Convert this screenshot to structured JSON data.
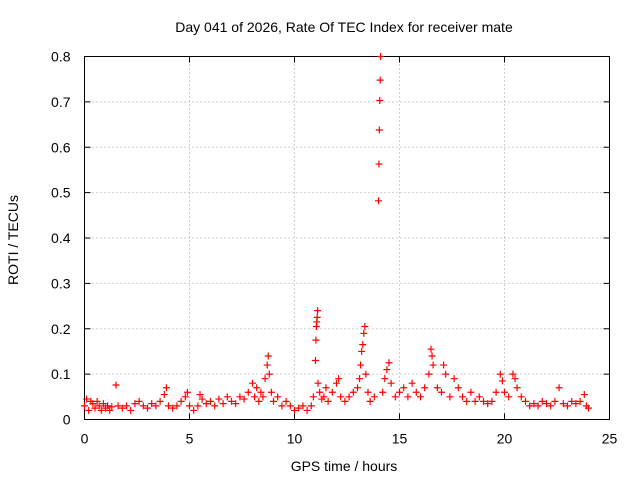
{
  "chart_data": {
    "type": "scatter",
    "title": "Day 041 of 2026, Rate Of TEC Index for receiver mate",
    "xlabel": "GPS time / hours",
    "ylabel": "ROTI / TECUs",
    "xlim": [
      0,
      25
    ],
    "ylim": [
      0,
      0.8
    ],
    "x_ticks": [
      0,
      5,
      10,
      15,
      20,
      25
    ],
    "x_tick_labels": [
      "0",
      "5",
      "10",
      "15",
      "20",
      "25"
    ],
    "y_ticks": [
      0,
      0.1,
      0.2,
      0.3,
      0.4,
      0.5,
      0.6,
      0.7,
      0.8
    ],
    "y_tick_labels": [
      "0",
      "0.1",
      "0.2",
      "0.3",
      "0.4",
      "0.5",
      "0.6",
      "0.7",
      "0.8"
    ],
    "grid": true,
    "marker": "+",
    "color": "#ff0000",
    "series": [
      {
        "name": "ROTI",
        "points": [
          [
            0.0,
            0.03
          ],
          [
            0.1,
            0.045
          ],
          [
            0.2,
            0.02
          ],
          [
            0.3,
            0.04
          ],
          [
            0.4,
            0.035
          ],
          [
            0.5,
            0.025
          ],
          [
            0.6,
            0.04
          ],
          [
            0.7,
            0.03
          ],
          [
            0.8,
            0.02
          ],
          [
            0.9,
            0.035
          ],
          [
            1.0,
            0.025
          ],
          [
            1.1,
            0.03
          ],
          [
            1.2,
            0.02
          ],
          [
            1.3,
            0.028
          ],
          [
            1.5,
            0.076
          ],
          [
            1.6,
            0.03
          ],
          [
            1.8,
            0.025
          ],
          [
            2.0,
            0.03
          ],
          [
            2.2,
            0.02
          ],
          [
            2.4,
            0.035
          ],
          [
            2.6,
            0.04
          ],
          [
            2.8,
            0.03
          ],
          [
            3.0,
            0.025
          ],
          [
            3.2,
            0.035
          ],
          [
            3.4,
            0.03
          ],
          [
            3.6,
            0.04
          ],
          [
            3.8,
            0.055
          ],
          [
            3.9,
            0.07
          ],
          [
            4.0,
            0.03
          ],
          [
            4.2,
            0.025
          ],
          [
            4.4,
            0.03
          ],
          [
            4.6,
            0.04
          ],
          [
            4.8,
            0.05
          ],
          [
            4.9,
            0.06
          ],
          [
            5.0,
            0.03
          ],
          [
            5.2,
            0.02
          ],
          [
            5.4,
            0.03
          ],
          [
            5.5,
            0.055
          ],
          [
            5.6,
            0.045
          ],
          [
            5.8,
            0.035
          ],
          [
            6.0,
            0.04
          ],
          [
            6.2,
            0.03
          ],
          [
            6.4,
            0.045
          ],
          [
            6.6,
            0.035
          ],
          [
            6.8,
            0.05
          ],
          [
            7.0,
            0.04
          ],
          [
            7.2,
            0.035
          ],
          [
            7.4,
            0.05
          ],
          [
            7.6,
            0.045
          ],
          [
            7.8,
            0.06
          ],
          [
            8.0,
            0.08
          ],
          [
            8.1,
            0.05
          ],
          [
            8.2,
            0.07
          ],
          [
            8.3,
            0.04
          ],
          [
            8.4,
            0.06
          ],
          [
            8.5,
            0.05
          ],
          [
            8.6,
            0.09
          ],
          [
            8.7,
            0.12
          ],
          [
            8.75,
            0.14
          ],
          [
            8.8,
            0.1
          ],
          [
            8.9,
            0.06
          ],
          [
            9.0,
            0.04
          ],
          [
            9.2,
            0.05
          ],
          [
            9.4,
            0.03
          ],
          [
            9.6,
            0.04
          ],
          [
            9.8,
            0.03
          ],
          [
            10.0,
            0.02
          ],
          [
            10.2,
            0.025
          ],
          [
            10.4,
            0.03
          ],
          [
            10.6,
            0.02
          ],
          [
            10.8,
            0.03
          ],
          [
            10.9,
            0.05
          ],
          [
            11.0,
            0.13
          ],
          [
            11.02,
            0.175
          ],
          [
            11.04,
            0.205
          ],
          [
            11.06,
            0.215
          ],
          [
            11.08,
            0.225
          ],
          [
            11.1,
            0.24
          ],
          [
            11.12,
            0.08
          ],
          [
            11.2,
            0.06
          ],
          [
            11.3,
            0.045
          ],
          [
            11.4,
            0.05
          ],
          [
            11.5,
            0.07
          ],
          [
            11.6,
            0.04
          ],
          [
            11.8,
            0.06
          ],
          [
            12.0,
            0.08
          ],
          [
            12.1,
            0.09
          ],
          [
            12.2,
            0.05
          ],
          [
            12.4,
            0.04
          ],
          [
            12.6,
            0.05
          ],
          [
            12.8,
            0.06
          ],
          [
            13.0,
            0.07
          ],
          [
            13.1,
            0.09
          ],
          [
            13.15,
            0.12
          ],
          [
            13.2,
            0.15
          ],
          [
            13.25,
            0.165
          ],
          [
            13.3,
            0.19
          ],
          [
            13.35,
            0.205
          ],
          [
            13.4,
            0.1
          ],
          [
            13.5,
            0.06
          ],
          [
            13.6,
            0.04
          ],
          [
            13.8,
            0.05
          ],
          [
            14.0,
            0.482
          ],
          [
            14.02,
            0.563
          ],
          [
            14.04,
            0.638
          ],
          [
            14.06,
            0.703
          ],
          [
            14.08,
            0.748
          ],
          [
            14.1,
            0.8
          ],
          [
            14.2,
            0.06
          ],
          [
            14.3,
            0.09
          ],
          [
            14.4,
            0.11
          ],
          [
            14.5,
            0.125
          ],
          [
            14.6,
            0.08
          ],
          [
            14.8,
            0.05
          ],
          [
            15.0,
            0.06
          ],
          [
            15.2,
            0.07
          ],
          [
            15.4,
            0.05
          ],
          [
            15.6,
            0.08
          ],
          [
            15.8,
            0.06
          ],
          [
            16.0,
            0.05
          ],
          [
            16.2,
            0.07
          ],
          [
            16.4,
            0.1
          ],
          [
            16.5,
            0.155
          ],
          [
            16.55,
            0.14
          ],
          [
            16.6,
            0.12
          ],
          [
            16.8,
            0.07
          ],
          [
            17.0,
            0.06
          ],
          [
            17.1,
            0.12
          ],
          [
            17.2,
            0.1
          ],
          [
            17.4,
            0.05
          ],
          [
            17.6,
            0.09
          ],
          [
            17.8,
            0.07
          ],
          [
            18.0,
            0.05
          ],
          [
            18.2,
            0.04
          ],
          [
            18.4,
            0.06
          ],
          [
            18.6,
            0.04
          ],
          [
            18.8,
            0.05
          ],
          [
            19.0,
            0.04
          ],
          [
            19.2,
            0.035
          ],
          [
            19.4,
            0.04
          ],
          [
            19.6,
            0.06
          ],
          [
            19.8,
            0.1
          ],
          [
            19.9,
            0.085
          ],
          [
            20.0,
            0.06
          ],
          [
            20.2,
            0.05
          ],
          [
            20.4,
            0.1
          ],
          [
            20.5,
            0.09
          ],
          [
            20.6,
            0.07
          ],
          [
            20.8,
            0.05
          ],
          [
            21.0,
            0.04
          ],
          [
            21.2,
            0.03
          ],
          [
            21.4,
            0.035
          ],
          [
            21.6,
            0.03
          ],
          [
            21.8,
            0.04
          ],
          [
            22.0,
            0.035
          ],
          [
            22.2,
            0.03
          ],
          [
            22.4,
            0.04
          ],
          [
            22.6,
            0.07
          ],
          [
            22.8,
            0.035
          ],
          [
            23.0,
            0.03
          ],
          [
            23.2,
            0.04
          ],
          [
            23.4,
            0.035
          ],
          [
            23.6,
            0.04
          ],
          [
            23.8,
            0.055
          ],
          [
            23.9,
            0.03
          ],
          [
            24.0,
            0.025
          ]
        ]
      }
    ]
  }
}
